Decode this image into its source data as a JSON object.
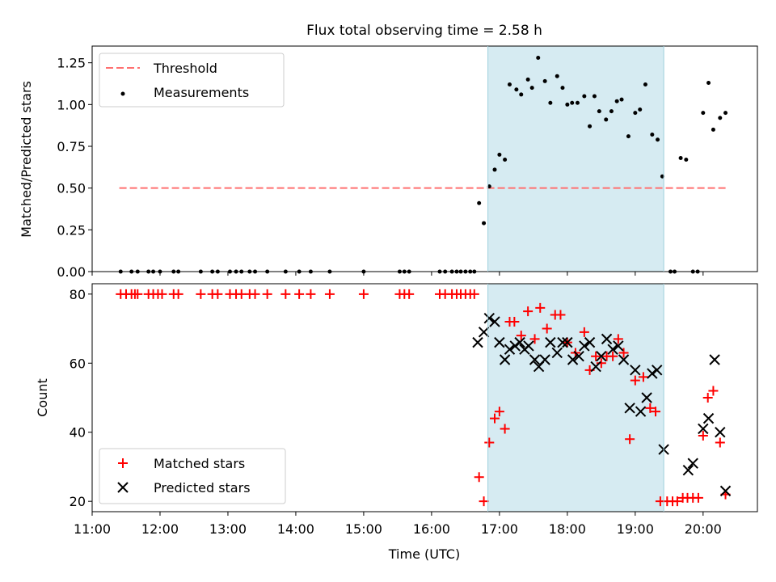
{
  "figure": {
    "title": "Flux total observing time = 2.58 h"
  },
  "colors": {
    "threshold": "#ff7070",
    "measurements": "#000000",
    "matched": "#ff0000",
    "predicted": "#000000",
    "span": "#add8e6"
  },
  "chart_data": [
    {
      "type": "scatter",
      "name": "ratio-panel",
      "ylabel": "Matched/Predicted stars",
      "xlim": [
        11.0,
        20.8
      ],
      "ylim": [
        0.0,
        1.35
      ],
      "yticks": [
        0.0,
        0.25,
        0.5,
        0.75,
        1.0,
        1.25
      ],
      "ytick_labels": [
        "0.00",
        "0.25",
        "0.50",
        "0.75",
        "1.00",
        "1.25"
      ],
      "highlight_span": [
        16.83,
        19.42
      ],
      "legend": {
        "position": "upper-left",
        "entries": [
          "Threshold",
          "Measurements"
        ]
      },
      "threshold": {
        "name": "Threshold",
        "x": [
          11.4,
          20.35
        ],
        "y": 0.5
      },
      "series": [
        {
          "name": "Measurements",
          "x": [
            11.42,
            11.58,
            11.67,
            11.83,
            11.9,
            12.0,
            12.2,
            12.27,
            12.6,
            12.77,
            12.85,
            13.03,
            13.12,
            13.2,
            13.32,
            13.4,
            13.58,
            13.85,
            14.05,
            14.22,
            14.5,
            15.0,
            15.53,
            15.6,
            15.67,
            16.12,
            16.2,
            16.3,
            16.37,
            16.43,
            16.5,
            16.57,
            16.63,
            16.7,
            16.77,
            16.85,
            16.93,
            17.0,
            17.08,
            17.15,
            17.25,
            17.32,
            17.42,
            17.48,
            17.57,
            17.67,
            17.75,
            17.85,
            17.93,
            18.0,
            18.07,
            18.15,
            18.25,
            18.33,
            18.4,
            18.47,
            18.57,
            18.65,
            18.73,
            18.8,
            18.9,
            19.0,
            19.07,
            19.15,
            19.25,
            19.33,
            19.4,
            19.52,
            19.58,
            19.67,
            19.75,
            19.85,
            19.92,
            20.0,
            20.08,
            20.15,
            20.25,
            20.33
          ],
          "y": [
            0,
            0,
            0,
            0,
            0,
            0,
            0,
            0,
            0,
            0,
            0,
            0,
            0,
            0,
            0,
            0,
            0,
            0,
            0,
            0,
            0,
            0,
            0,
            0,
            0,
            0,
            0,
            0,
            0,
            0,
            0,
            0,
            0,
            0.41,
            0.29,
            0.51,
            0.61,
            0.7,
            0.67,
            1.12,
            1.09,
            1.06,
            1.15,
            1.1,
            1.28,
            1.14,
            1.01,
            1.17,
            1.1,
            1.0,
            1.01,
            1.01,
            1.05,
            0.87,
            1.05,
            0.96,
            0.91,
            0.96,
            1.02,
            1.03,
            0.81,
            0.95,
            0.97,
            1.12,
            0.82,
            0.79,
            0.57,
            0,
            0,
            0.68,
            0.67,
            0,
            0,
            0.95,
            1.13,
            0.85,
            0.92,
            0.95
          ]
        }
      ]
    },
    {
      "type": "scatter",
      "name": "count-panel",
      "xlabel": "Time (UTC)",
      "ylabel": "Count",
      "xlim": [
        11.0,
        20.8
      ],
      "ylim": [
        17,
        83
      ],
      "xticks": [
        11,
        12,
        13,
        14,
        15,
        16,
        17,
        18,
        19,
        20
      ],
      "xtick_labels": [
        "11:00",
        "12:00",
        "13:00",
        "14:00",
        "15:00",
        "16:00",
        "17:00",
        "18:00",
        "19:00",
        "20:00"
      ],
      "yticks": [
        20,
        40,
        60,
        80
      ],
      "ytick_labels": [
        "20",
        "40",
        "60",
        "80"
      ],
      "highlight_span": [
        16.83,
        19.42
      ],
      "legend": {
        "position": "lower-left",
        "entries": [
          "Matched stars",
          "Predicted stars"
        ]
      },
      "series": [
        {
          "name": "Matched stars",
          "marker": "plus",
          "x": [
            11.42,
            11.5,
            11.58,
            11.63,
            11.67,
            11.83,
            11.9,
            11.97,
            12.03,
            12.2,
            12.27,
            12.6,
            12.77,
            12.85,
            13.03,
            13.12,
            13.2,
            13.32,
            13.4,
            13.58,
            13.85,
            14.05,
            14.22,
            14.5,
            15.0,
            15.53,
            15.6,
            15.67,
            16.12,
            16.2,
            16.3,
            16.37,
            16.43,
            16.5,
            16.57,
            16.63,
            16.7,
            16.77,
            16.85,
            16.93,
            17.0,
            17.08,
            17.15,
            17.22,
            17.32,
            17.42,
            17.52,
            17.6,
            17.7,
            17.82,
            17.9,
            18.0,
            18.12,
            18.25,
            18.33,
            18.42,
            18.5,
            18.58,
            18.67,
            18.75,
            18.83,
            18.92,
            19.0,
            19.12,
            19.22,
            19.3,
            19.37,
            19.47,
            19.55,
            19.62,
            19.7,
            19.77,
            19.85,
            19.93,
            20.0,
            20.07,
            20.15,
            20.25,
            20.33
          ],
          "y": [
            80,
            80,
            80,
            80,
            80,
            80,
            80,
            80,
            80,
            80,
            80,
            80,
            80,
            80,
            80,
            80,
            80,
            80,
            80,
            80,
            80,
            80,
            80,
            80,
            80,
            80,
            80,
            80,
            80,
            80,
            80,
            80,
            80,
            80,
            80,
            80,
            27,
            20,
            37,
            44,
            46,
            41,
            72,
            72,
            68,
            75,
            67,
            76,
            70,
            74,
            74,
            66,
            63,
            69,
            58,
            62,
            60,
            62,
            62,
            67,
            63,
            38,
            55,
            56,
            47,
            46,
            20,
            20,
            20,
            20,
            21,
            21,
            21,
            21,
            39,
            50,
            52,
            37,
            22
          ]
        },
        {
          "name": "Predicted stars",
          "marker": "x",
          "x": [
            16.68,
            16.77,
            16.85,
            16.93,
            17.0,
            17.08,
            17.15,
            17.23,
            17.3,
            17.37,
            17.43,
            17.52,
            17.58,
            17.67,
            17.75,
            17.85,
            17.93,
            18.0,
            18.08,
            18.17,
            18.25,
            18.33,
            18.42,
            18.5,
            18.58,
            18.67,
            18.75,
            18.83,
            18.92,
            19.0,
            19.08,
            19.17,
            19.25,
            19.32,
            19.42,
            19.78,
            19.85,
            20.0,
            20.08,
            20.17,
            20.25,
            20.33
          ],
          "y": [
            66,
            69,
            73,
            72,
            66,
            61,
            64,
            65,
            66,
            64,
            65,
            61,
            59,
            61,
            66,
            63,
            66,
            66,
            61,
            62,
            65,
            66,
            59,
            62,
            67,
            64,
            65,
            61,
            47,
            58,
            46,
            50,
            57,
            58,
            35,
            29,
            31,
            41,
            44,
            61,
            40,
            23
          ]
        }
      ]
    }
  ]
}
